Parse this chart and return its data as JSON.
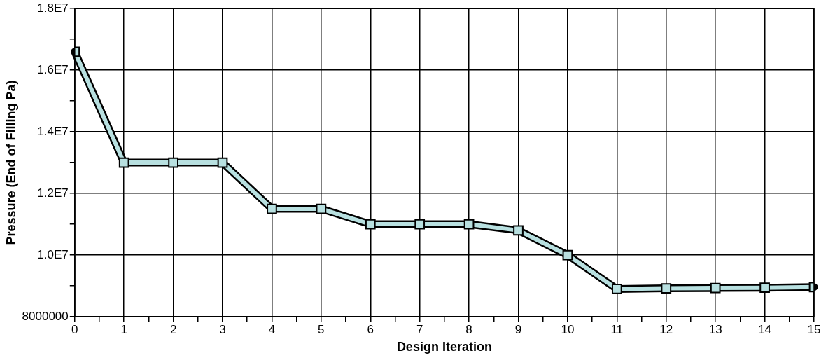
{
  "chart_data": {
    "type": "line",
    "xlabel": "Design Iteration",
    "ylabel": "Pressure (End of Filling Pa)",
    "x": [
      0,
      1,
      2,
      3,
      4,
      5,
      6,
      7,
      8,
      9,
      10,
      11,
      12,
      13,
      14,
      15
    ],
    "series": [
      {
        "color": "#b8e0e0",
        "values": [
          16600000,
          13000000,
          13000000,
          13000000,
          11500000,
          11500000,
          11000000,
          11000000,
          11000000,
          10800000,
          10000000,
          8900000,
          8920000,
          8930000,
          8940000,
          8960000
        ]
      }
    ],
    "xlim": [
      0,
      15
    ],
    "xticks": [
      0,
      {
        "value": 0.5,
        "label": null
      },
      1,
      {
        "value": 1.5,
        "label": null
      },
      2,
      {
        "value": 2.5,
        "label": null
      },
      3,
      {
        "value": 3.5,
        "label": null
      },
      4,
      {
        "value": 4.5,
        "label": null
      },
      5,
      {
        "value": 5.5,
        "label": null
      },
      6,
      {
        "value": 6.5,
        "label": null
      },
      7,
      {
        "value": 7.5,
        "label": null
      },
      8,
      {
        "value": 8.5,
        "label": null
      },
      9,
      {
        "value": 9.5,
        "label": null
      },
      10,
      {
        "value": 10.5,
        "label": null
      },
      11,
      {
        "value": 11.5,
        "label": null
      },
      12,
      {
        "value": 12.5,
        "label": null
      },
      13,
      {
        "value": 13.5,
        "label": null
      },
      14,
      {
        "value": 14.5,
        "label": null
      },
      15
    ],
    "ylim": [
      8000000,
      18000000
    ],
    "yticks": [
      8000000,
      {
        "value": 9000000,
        "label": null
      },
      {
        "value": 10000000,
        "label": "1.0E7"
      },
      {
        "value": 11000000,
        "label": null
      },
      {
        "value": 12000000,
        "label": "1.2E7"
      },
      {
        "value": 13000000,
        "label": null
      },
      {
        "value": 14000000,
        "label": "1.4E7"
      },
      {
        "value": 15000000,
        "label": null
      },
      {
        "value": 16000000,
        "label": "1.6E7"
      },
      {
        "value": 17000000,
        "label": null
      },
      {
        "value": 18000000,
        "label": "1.8E7"
      }
    ],
    "grid": true,
    "legend": false,
    "marker": "square",
    "line_style": "solid"
  }
}
